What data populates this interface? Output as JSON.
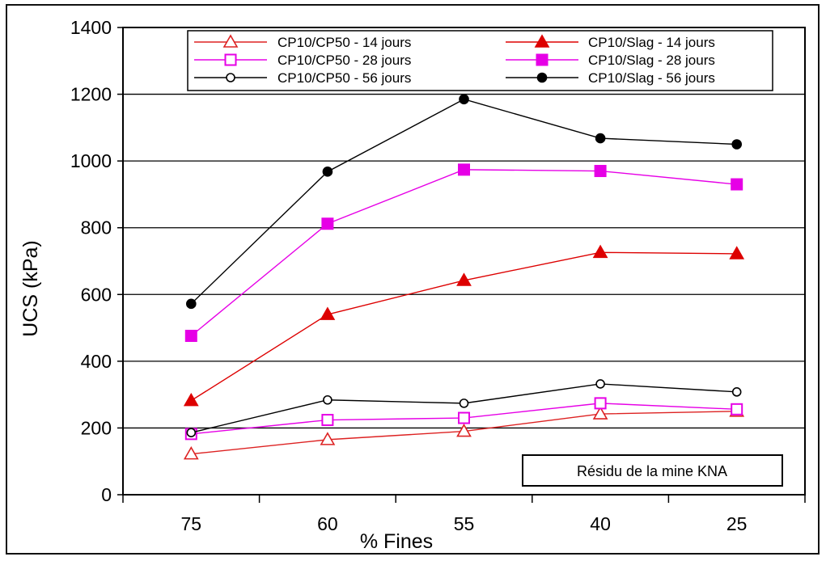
{
  "chart_data": {
    "type": "line",
    "title": "",
    "xlabel": "% Fines",
    "ylabel": "UCS (kPa)",
    "categories": [
      "75",
      "60",
      "55",
      "40",
      "25"
    ],
    "ylim": [
      0,
      1400
    ],
    "yticks": [
      0,
      200,
      400,
      600,
      800,
      1000,
      1200,
      1400
    ],
    "grid": "horizontal",
    "legend_position": "top",
    "annotation": "Résidu de la mine KNA",
    "series": [
      {
        "name": "CP10/CP50 - 14 jours",
        "values": [
          122,
          165,
          190,
          242,
          250
        ],
        "color": "#dd2222",
        "marker": "triangle",
        "filled": false
      },
      {
        "name": "CP10/Slag - 14 jours",
        "values": [
          282,
          540,
          642,
          726,
          722
        ],
        "color": "#dd0000",
        "marker": "triangle",
        "filled": true
      },
      {
        "name": "CP10/CP50 - 28 jours",
        "values": [
          182,
          224,
          230,
          274,
          256
        ],
        "color": "#e600e6",
        "marker": "square",
        "filled": false
      },
      {
        "name": "CP10/Slag - 28 jours",
        "values": [
          476,
          812,
          974,
          970,
          930
        ],
        "color": "#e600e6",
        "marker": "square",
        "filled": true
      },
      {
        "name": "CP10/CP50 - 56 jours",
        "values": [
          186,
          284,
          274,
          332,
          308
        ],
        "color": "#000000",
        "marker": "circle",
        "filled": false
      },
      {
        "name": "CP10/Slag - 56 jours",
        "values": [
          572,
          968,
          1185,
          1068,
          1050
        ],
        "color": "#000000",
        "marker": "circle",
        "filled": true
      }
    ]
  }
}
